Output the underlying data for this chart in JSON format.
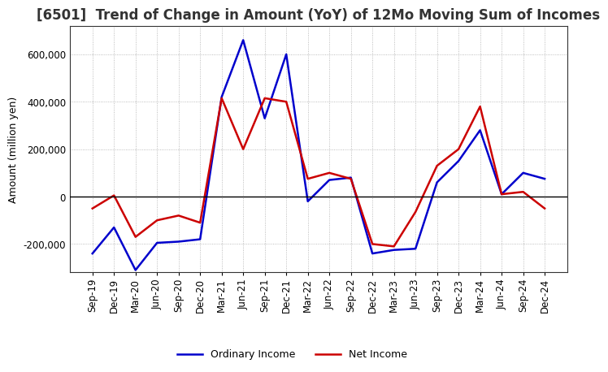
{
  "title": "[6501]  Trend of Change in Amount (YoY) of 12Mo Moving Sum of Incomes",
  "ylabel": "Amount (million yen)",
  "x_labels": [
    "Sep-19",
    "Dec-19",
    "Mar-20",
    "Jun-20",
    "Sep-20",
    "Dec-20",
    "Mar-21",
    "Jun-21",
    "Sep-21",
    "Dec-21",
    "Mar-22",
    "Jun-22",
    "Sep-22",
    "Dec-22",
    "Mar-23",
    "Jun-23",
    "Sep-23",
    "Dec-23",
    "Mar-24",
    "Jun-24",
    "Sep-24",
    "Dec-24"
  ],
  "ordinary_income": [
    -240000,
    -130000,
    -310000,
    -195000,
    -190000,
    -180000,
    420000,
    660000,
    330000,
    600000,
    -20000,
    70000,
    80000,
    -240000,
    -225000,
    -220000,
    60000,
    150000,
    280000,
    10000,
    100000,
    75000
  ],
  "net_income": [
    -50000,
    5000,
    -170000,
    -100000,
    -80000,
    -110000,
    415000,
    200000,
    415000,
    400000,
    75000,
    100000,
    75000,
    -200000,
    -210000,
    -65000,
    130000,
    200000,
    380000,
    10000,
    20000,
    -50000
  ],
  "ordinary_color": "#0000cc",
  "net_color": "#cc0000",
  "ylim": [
    -320000,
    720000
  ],
  "yticks": [
    -200000,
    0,
    200000,
    400000,
    600000
  ],
  "background_color": "#ffffff",
  "grid_color": "#aaaaaa",
  "title_color": "#333333",
  "title_fontsize": 12,
  "ylabel_fontsize": 9,
  "tick_fontsize": 8.5
}
